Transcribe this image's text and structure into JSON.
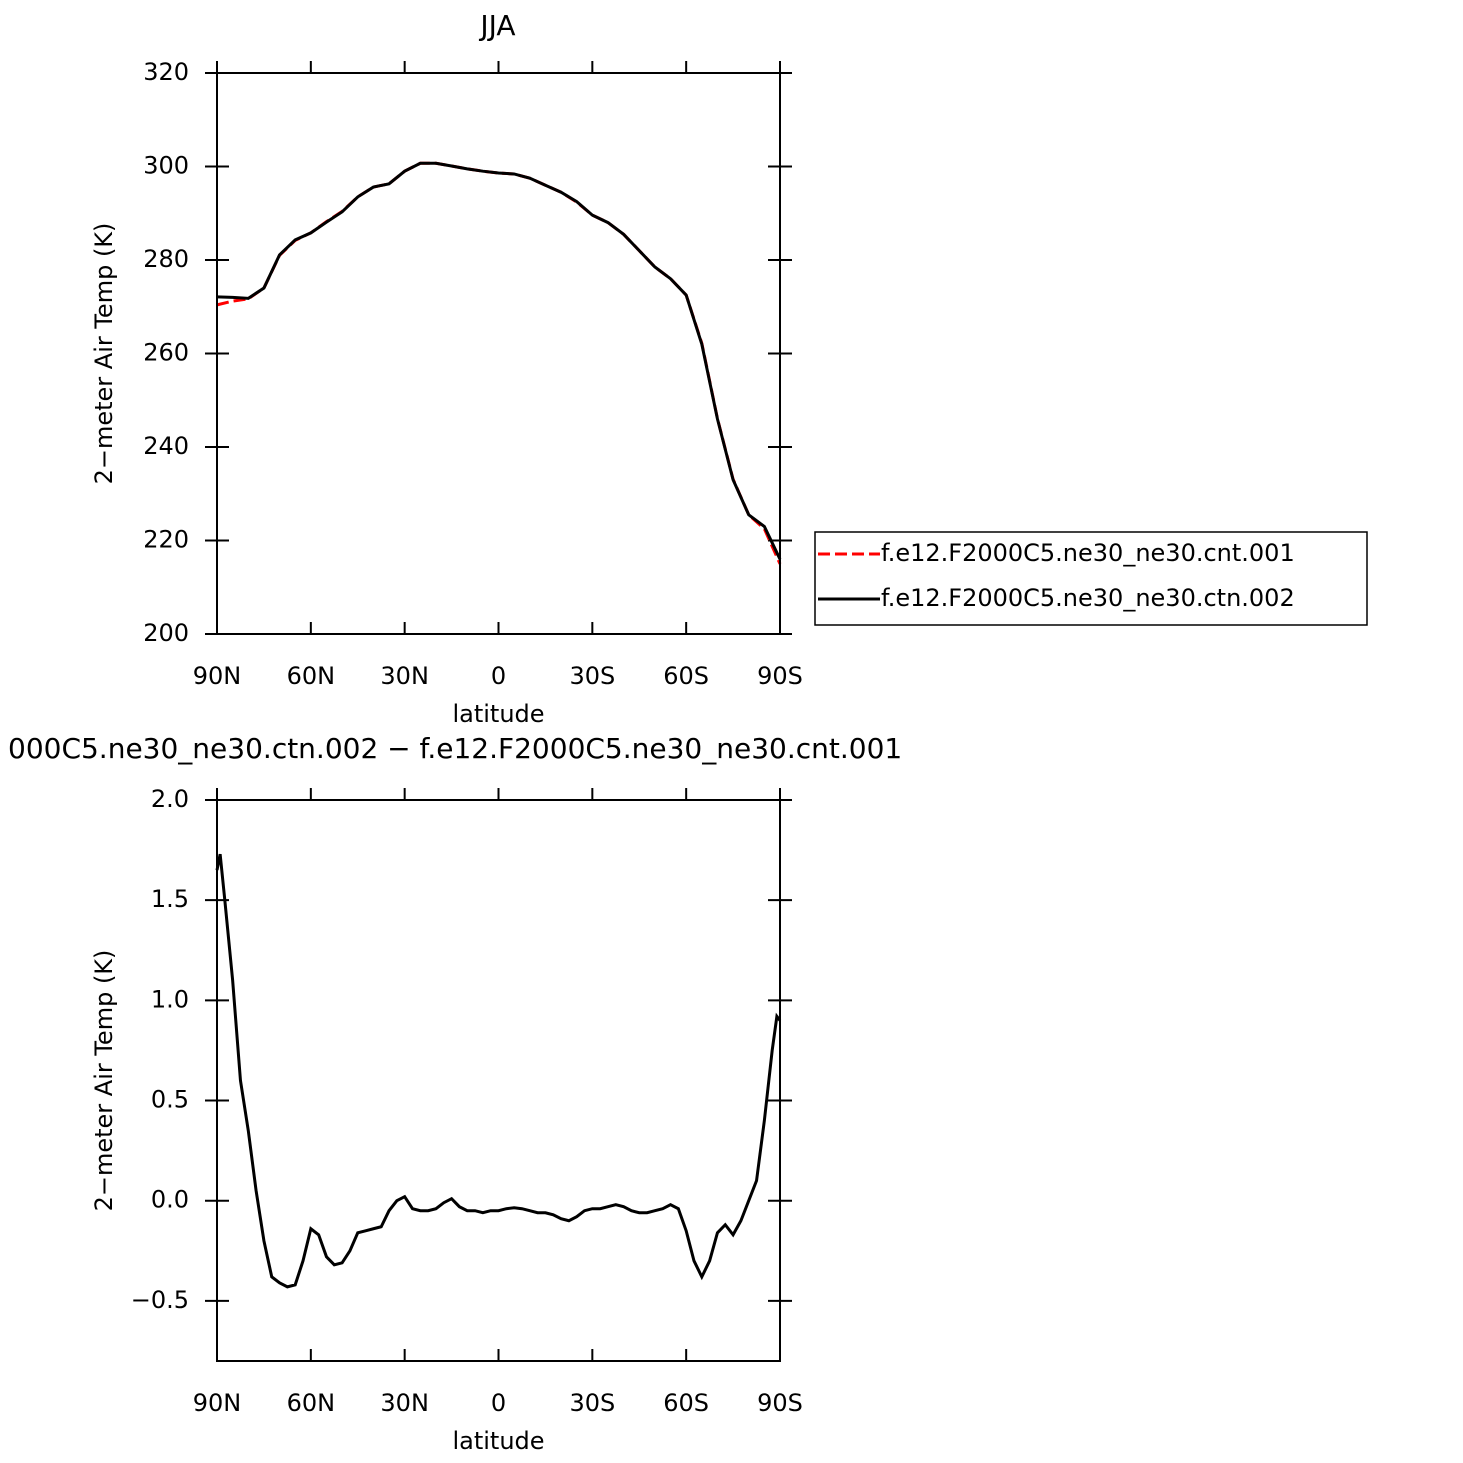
{
  "chart_data": [
    {
      "type": "line",
      "title": "JJA",
      "xlabel": "latitude",
      "ylabel": "2−meter Air Temp (K)",
      "xlim": [
        90,
        -90
      ],
      "ylim": [
        200,
        320
      ],
      "xticks": [
        {
          "value": 90,
          "label": "90N"
        },
        {
          "value": 60,
          "label": "60N"
        },
        {
          "value": 30,
          "label": "30N"
        },
        0,
        {
          "value": -30,
          "label": "30S"
        },
        {
          "value": -60,
          "label": "60S"
        },
        {
          "value": -90,
          "label": "90S"
        }
      ],
      "yticks": [
        200,
        220,
        240,
        260,
        280,
        300,
        320
      ],
      "legend": "right",
      "x": [
        90,
        85,
        80,
        75,
        70,
        65,
        60,
        55,
        50,
        45,
        40,
        35,
        30,
        25,
        20,
        15,
        10,
        5,
        0,
        -5,
        -10,
        -15,
        -20,
        -25,
        -30,
        -35,
        -40,
        -45,
        -50,
        -55,
        -60,
        -65,
        -70,
        -75,
        -80,
        -85,
        -90
      ],
      "series": [
        {
          "name": "f.e12.F2000C5.ne30_ne30.cnt.001",
          "color": "#ff0000",
          "linestyle": "dashed",
          "values": [
            270.4,
            271.2,
            271.7,
            274,
            281,
            284.2,
            285.8,
            288.2,
            290.4,
            293.5,
            295.6,
            296.3,
            299,
            300.7,
            300.7,
            300.1,
            299.5,
            299,
            298.6,
            298.4,
            297.5,
            296,
            294.5,
            292.4,
            289.6,
            288,
            285.5,
            282,
            278.5,
            276,
            272.5,
            262.2,
            246.1,
            233.1,
            225.5,
            222.5,
            215
          ]
        },
        {
          "name": "f.e12.F2000C5.ne30_ne30.ctn.002",
          "color": "#000000",
          "linestyle": "solid",
          "values": [
            272.1,
            272,
            271.8,
            274,
            281.1,
            284.3,
            285.8,
            288.1,
            290.3,
            293.5,
            295.6,
            296.3,
            299,
            300.7,
            300.7,
            300.1,
            299.5,
            299,
            298.6,
            298.4,
            297.5,
            296,
            294.5,
            292.5,
            289.6,
            288,
            285.5,
            282,
            278.5,
            276,
            272.5,
            262,
            246,
            233,
            225.5,
            223,
            216
          ]
        }
      ]
    },
    {
      "type": "line",
      "title": "000C5.ne30_ne30.ctn.002 − f.e12.F2000C5.ne30_ne30.cnt.001",
      "xlabel": "latitude",
      "ylabel": "2−meter Air Temp (K)",
      "xlim": [
        90,
        -90
      ],
      "ylim": [
        -0.8,
        2.0
      ],
      "xticks": [
        {
          "value": 90,
          "label": "90N"
        },
        {
          "value": 60,
          "label": "60N"
        },
        {
          "value": 30,
          "label": "30N"
        },
        0,
        {
          "value": -30,
          "label": "30S"
        },
        {
          "value": -60,
          "label": "60S"
        },
        {
          "value": -90,
          "label": "90S"
        }
      ],
      "yticks": [
        {
          "value": -0.5,
          "label": "−0.5"
        },
        {
          "value": 0,
          "label": "0.0"
        },
        0.5,
        {
          "value": 1,
          "label": "1.0"
        },
        1.5,
        {
          "value": 2,
          "label": "2.0"
        }
      ],
      "x": [
        90,
        89,
        87.5,
        85,
        82.5,
        80,
        77.5,
        75,
        72.5,
        70,
        67.5,
        65,
        62.5,
        60,
        57.5,
        55,
        52.5,
        50,
        47.5,
        45,
        42.5,
        40,
        37.5,
        35,
        32.5,
        30,
        27.5,
        25,
        22.5,
        20,
        17.5,
        15,
        12.5,
        10,
        7.5,
        5,
        2.5,
        0,
        -2.5,
        -5,
        -7.5,
        -10,
        -12.5,
        -15,
        -17.5,
        -20,
        -22.5,
        -25,
        -27.5,
        -30,
        -32.5,
        -35,
        -37.5,
        -40,
        -42.5,
        -45,
        -47.5,
        -50,
        -52.5,
        -55,
        -57.5,
        -60,
        -62.5,
        -65,
        -67.5,
        -70,
        -72.5,
        -75,
        -77.5,
        -80,
        -82.5,
        -85,
        -87.5,
        -89,
        -90
      ],
      "series": [
        {
          "color": "#000000",
          "linestyle": "solid",
          "values": [
            1.65,
            1.73,
            1.5,
            1.1,
            0.6,
            0.35,
            0.05,
            -0.2,
            -0.38,
            -0.41,
            -0.43,
            -0.42,
            -0.3,
            -0.14,
            -0.17,
            -0.28,
            -0.32,
            -0.31,
            -0.25,
            -0.16,
            -0.15,
            -0.14,
            -0.13,
            -0.05,
            0.0,
            0.02,
            -0.04,
            -0.05,
            -0.05,
            -0.04,
            -0.01,
            0.01,
            -0.03,
            -0.05,
            -0.05,
            -0.06,
            -0.05,
            -0.05,
            -0.04,
            -0.035,
            -0.04,
            -0.05,
            -0.06,
            -0.06,
            -0.07,
            -0.09,
            -0.1,
            -0.08,
            -0.05,
            -0.04,
            -0.04,
            -0.03,
            -0.02,
            -0.03,
            -0.05,
            -0.06,
            -0.06,
            -0.05,
            -0.04,
            -0.02,
            -0.04,
            -0.15,
            -0.3,
            -0.38,
            -0.3,
            -0.16,
            -0.12,
            -0.17,
            -0.1,
            0.0,
            0.1,
            0.4,
            0.75,
            0.92,
            0.9
          ]
        }
      ]
    }
  ]
}
